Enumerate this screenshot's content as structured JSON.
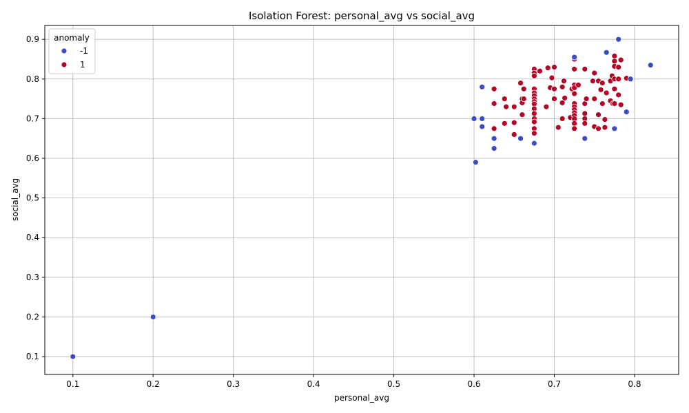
{
  "chart_data": {
    "type": "scatter",
    "title": "Isolation Forest: personal_avg vs social_avg",
    "xlabel": "personal_avg",
    "ylabel": "social_avg",
    "xlim": [
      0.065,
      0.855
    ],
    "ylim": [
      0.055,
      0.935
    ],
    "xticks": [
      "0.1",
      "0.2",
      "0.3",
      "0.4",
      "0.5",
      "0.6",
      "0.7",
      "0.8"
    ],
    "xtick_values": [
      0.1,
      0.2,
      0.3,
      0.4,
      0.5,
      0.6,
      0.7,
      0.8
    ],
    "yticks": [
      "0.1",
      "0.2",
      "0.3",
      "0.4",
      "0.5",
      "0.6",
      "0.7",
      "0.8",
      "0.9"
    ],
    "ytick_values": [
      0.1,
      0.2,
      0.3,
      0.4,
      0.5,
      0.6,
      0.7,
      0.8,
      0.9
    ],
    "grid": true,
    "legend": {
      "title": "anomaly",
      "placement": "top-left"
    },
    "series": [
      {
        "name": "-1",
        "color": "#3b4cc0",
        "points": [
          [
            0.1,
            0.1
          ],
          [
            0.2,
            0.2
          ],
          [
            0.6,
            0.7
          ],
          [
            0.602,
            0.59
          ],
          [
            0.61,
            0.7
          ],
          [
            0.61,
            0.68
          ],
          [
            0.61,
            0.78
          ],
          [
            0.625,
            0.65
          ],
          [
            0.625,
            0.625
          ],
          [
            0.658,
            0.65
          ],
          [
            0.675,
            0.638
          ],
          [
            0.725,
            0.855
          ],
          [
            0.738,
            0.65
          ],
          [
            0.765,
            0.867
          ],
          [
            0.775,
            0.675
          ],
          [
            0.78,
            0.9
          ],
          [
            0.79,
            0.717
          ],
          [
            0.795,
            0.8
          ],
          [
            0.82,
            0.835
          ]
        ]
      },
      {
        "name": "1",
        "color": "#b40426",
        "points": [
          [
            0.625,
            0.775
          ],
          [
            0.625,
            0.738
          ],
          [
            0.625,
            0.675
          ],
          [
            0.638,
            0.75
          ],
          [
            0.638,
            0.688
          ],
          [
            0.64,
            0.73
          ],
          [
            0.65,
            0.73
          ],
          [
            0.65,
            0.69
          ],
          [
            0.65,
            0.66
          ],
          [
            0.658,
            0.79
          ],
          [
            0.66,
            0.75
          ],
          [
            0.66,
            0.74
          ],
          [
            0.66,
            0.71
          ],
          [
            0.662,
            0.775
          ],
          [
            0.662,
            0.75
          ],
          [
            0.675,
            0.825
          ],
          [
            0.675,
            0.815
          ],
          [
            0.675,
            0.808
          ],
          [
            0.675,
            0.775
          ],
          [
            0.675,
            0.765
          ],
          [
            0.675,
            0.758
          ],
          [
            0.675,
            0.75
          ],
          [
            0.675,
            0.743
          ],
          [
            0.675,
            0.737
          ],
          [
            0.675,
            0.725
          ],
          [
            0.675,
            0.713
          ],
          [
            0.675,
            0.7
          ],
          [
            0.675,
            0.692
          ],
          [
            0.675,
            0.675
          ],
          [
            0.675,
            0.663
          ],
          [
            0.682,
            0.82
          ],
          [
            0.69,
            0.73
          ],
          [
            0.692,
            0.828
          ],
          [
            0.695,
            0.778
          ],
          [
            0.697,
            0.803
          ],
          [
            0.7,
            0.83
          ],
          [
            0.7,
            0.775
          ],
          [
            0.7,
            0.75
          ],
          [
            0.705,
            0.678
          ],
          [
            0.71,
            0.78
          ],
          [
            0.71,
            0.74
          ],
          [
            0.71,
            0.7
          ],
          [
            0.712,
            0.795
          ],
          [
            0.713,
            0.752
          ],
          [
            0.72,
            0.703
          ],
          [
            0.722,
            0.775
          ],
          [
            0.725,
            0.85
          ],
          [
            0.725,
            0.825
          ],
          [
            0.725,
            0.785
          ],
          [
            0.725,
            0.778
          ],
          [
            0.725,
            0.763
          ],
          [
            0.725,
            0.738
          ],
          [
            0.725,
            0.73
          ],
          [
            0.725,
            0.723
          ],
          [
            0.725,
            0.715
          ],
          [
            0.725,
            0.708
          ],
          [
            0.725,
            0.7
          ],
          [
            0.725,
            0.688
          ],
          [
            0.725,
            0.675
          ],
          [
            0.73,
            0.785
          ],
          [
            0.738,
            0.825
          ],
          [
            0.738,
            0.738
          ],
          [
            0.738,
            0.713
          ],
          [
            0.738,
            0.7
          ],
          [
            0.738,
            0.688
          ],
          [
            0.74,
            0.75
          ],
          [
            0.748,
            0.795
          ],
          [
            0.75,
            0.815
          ],
          [
            0.75,
            0.75
          ],
          [
            0.75,
            0.68
          ],
          [
            0.755,
            0.795
          ],
          [
            0.755,
            0.71
          ],
          [
            0.755,
            0.675
          ],
          [
            0.758,
            0.773
          ],
          [
            0.76,
            0.79
          ],
          [
            0.76,
            0.738
          ],
          [
            0.763,
            0.698
          ],
          [
            0.763,
            0.678
          ],
          [
            0.765,
            0.765
          ],
          [
            0.77,
            0.795
          ],
          [
            0.77,
            0.745
          ],
          [
            0.772,
            0.808
          ],
          [
            0.773,
            0.738
          ],
          [
            0.775,
            0.858
          ],
          [
            0.775,
            0.845
          ],
          [
            0.775,
            0.832
          ],
          [
            0.775,
            0.8
          ],
          [
            0.775,
            0.775
          ],
          [
            0.775,
            0.738
          ],
          [
            0.78,
            0.83
          ],
          [
            0.78,
            0.8
          ],
          [
            0.78,
            0.76
          ],
          [
            0.783,
            0.848
          ],
          [
            0.783,
            0.735
          ],
          [
            0.79,
            0.802
          ]
        ]
      }
    ]
  }
}
